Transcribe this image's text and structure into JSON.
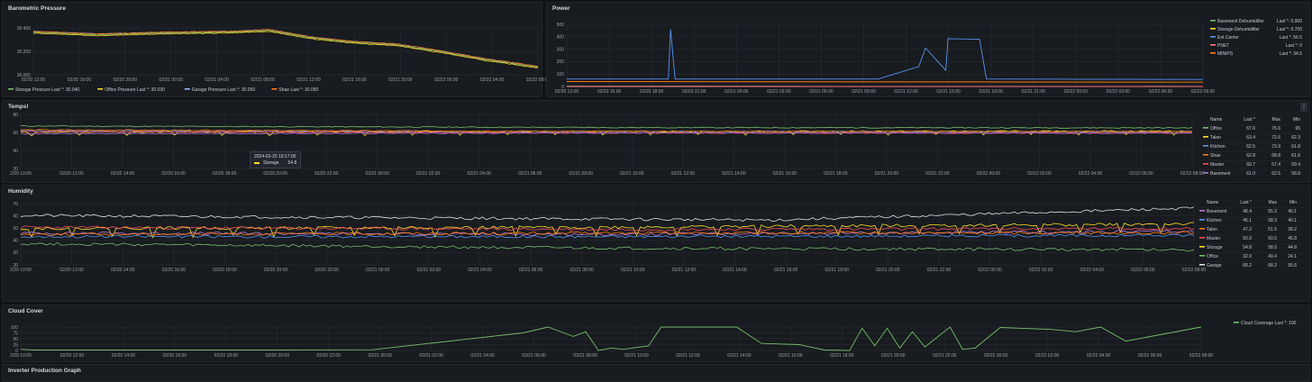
{
  "panels": {
    "baro": {
      "title": "Barometric Pressure"
    },
    "power": {
      "title": "Power"
    },
    "temps": {
      "title": "Temps!"
    },
    "humidity": {
      "title": "Humidity"
    },
    "cloud": {
      "title": "Cloud Cover"
    },
    "inverter": {
      "title": "Inverter Production Graph"
    }
  },
  "baro_legend": [
    {
      "label": "Storage Pressure  Last *: 30.040",
      "color": "#73bf69"
    },
    {
      "label": "Office Pressure  Last *: 30.030",
      "color": "#fade2a"
    },
    {
      "label": "Garage Pressure  Last *: 30.050",
      "color": "#8ab8ff"
    },
    {
      "label": "Shae  Last *: 30.050",
      "color": "#ff780a"
    }
  ],
  "power_legend": [
    {
      "name": "Basement Dehumidifier",
      "last": "Last *: 0.900",
      "color": "#73bf69"
    },
    {
      "name": "Storage Dehumidifier",
      "last": "Last *: 0.700",
      "color": "#fade2a"
    },
    {
      "name": "Ent Center",
      "last": "Last *: 56.5",
      "color": "#5794f2"
    },
    {
      "name": "PNET",
      "last": "Last *: 0",
      "color": "#ff7383"
    },
    {
      "name": "MINIPS",
      "last": "Last *: 34.5",
      "color": "#ff780a"
    }
  ],
  "temps_table": {
    "headers": [
      "Name",
      "Last *",
      "Max",
      "Min"
    ],
    "rows": [
      {
        "name": "Office",
        "last": "67.6",
        "max": "76.6",
        "min": "65",
        "color": "#73bf69"
      },
      {
        "name": "Talen",
        "last": "63.4",
        "max": "72.6",
        "min": "62.3",
        "color": "#fade2a"
      },
      {
        "name": "Kitchen",
        "last": "62.5",
        "max": "73.9",
        "min": "61.8",
        "color": "#5794f2"
      },
      {
        "name": "Shae",
        "last": "62.8",
        "max": "68.8",
        "min": "61.6",
        "color": "#ff780a"
      },
      {
        "name": "Master",
        "last": "60.7",
        "max": "67.4",
        "min": "59.4",
        "color": "#f2495c"
      },
      {
        "name": "Basement",
        "last": "61.0",
        "max": "62.5",
        "min": "58.8",
        "color": "#b877d9"
      }
    ]
  },
  "humidity_table": {
    "headers": [
      "Name",
      "Last *",
      "Max",
      "Min"
    ],
    "rows": [
      {
        "name": "Basement",
        "last": "48.4",
        "max": "55.3",
        "min": "40.1",
        "color": "#b877d9"
      },
      {
        "name": "Kitchen",
        "last": "45.1",
        "max": "58.3",
        "min": "40.1",
        "color": "#5794f2"
      },
      {
        "name": "Talen",
        "last": "47.2",
        "max": "51.5",
        "min": "38.2",
        "color": "#ff780a"
      },
      {
        "name": "Master",
        "last": "50.9",
        "max": "60.5",
        "min": "45.8",
        "color": "#f2495c"
      },
      {
        "name": "Storage",
        "last": "54.8",
        "max": "58.5",
        "min": "44.8",
        "color": "#fade2a"
      },
      {
        "name": "Office",
        "last": "32.9",
        "max": "40.4",
        "min": "24.1",
        "color": "#73bf69"
      },
      {
        "name": "Garage",
        "last": "68.2",
        "max": "68.2",
        "min": "55.6",
        "color": "#e0e0e0"
      }
    ]
  },
  "cloud_legend": {
    "label": "Cloud Coverage  Last *: 100",
    "color": "#73bf69"
  },
  "tooltip": {
    "time": "2024-02-20 19:17:00",
    "series": "Storage",
    "value": "54.8"
  },
  "axes": {
    "baro_y": [
      "30.400",
      "30.200",
      "30.000"
    ],
    "baro_x": [
      "02/20 12:00",
      "02/20 16:00",
      "02/20 20:00",
      "02/21 00:00",
      "02/21 04:00",
      "02/21 08:00",
      "02/21 12:00",
      "02/21 16:00",
      "02/21 20:00",
      "02/22 00:00",
      "02/22 04:00",
      "02/22 08:00"
    ],
    "power_y": [
      "500",
      "400",
      "300",
      "200",
      "100",
      "0"
    ],
    "power_x": [
      "02/20 12:00",
      "02/20 15:00",
      "02/20 18:00",
      "02/20 21:00",
      "02/21 00:00",
      "02/21 03:00",
      "02/21 06:00",
      "02/21 09:00",
      "02/21 12:00",
      "02/21 15:00",
      "02/21 18:00",
      "02/21 21:00",
      "02/22 00:00",
      "02/22 03:00",
      "02/22 06:00",
      "02/22 09:00"
    ],
    "temps_y": [
      "80",
      "60",
      "40",
      "20"
    ],
    "humidity_y": [
      "70",
      "60",
      "50",
      "40",
      "30",
      "20"
    ],
    "cloud_y": [
      "100",
      "75",
      "50",
      "25",
      "0"
    ],
    "long_x": [
      "2/20 10:00",
      "02/20 12:00",
      "02/20 14:00",
      "02/20 16:00",
      "02/20 18:00",
      "02/20 20:00",
      "02/20 22:00",
      "02/21 00:00",
      "02/21 02:00",
      "02/21 04:00",
      "02/21 06:00",
      "02/21 08:00",
      "02/21 10:00",
      "02/21 12:00",
      "02/21 14:00",
      "02/21 16:00",
      "02/21 18:00",
      "02/21 20:00",
      "02/21 22:00",
      "02/22 00:00",
      "02/22 02:00",
      "02/22 04:00",
      "02/22 06:00",
      "02/22 08:00"
    ]
  },
  "colors": {
    "background": "#111217",
    "panel": "#181b1f",
    "grid": "#2c2f35",
    "table_header": "#5794f2"
  },
  "chart_data": [
    {
      "type": "line",
      "title": "Barometric Pressure",
      "ylim": [
        29.95,
        30.5
      ],
      "series": [
        {
          "name": "Storage Pressure",
          "x": [
            "02/20 10:00",
            "02/20 16:00",
            "02/20 22:00",
            "02/21 04:00",
            "02/21 08:00",
            "02/21 12:00",
            "02/21 16:00",
            "02/21 20:00",
            "02/22 00:00",
            "02/22 04:00",
            "02/22 09:00"
          ],
          "values": [
            30.45,
            30.42,
            30.44,
            30.45,
            30.47,
            30.38,
            30.33,
            30.3,
            30.22,
            30.13,
            30.04
          ]
        },
        {
          "name": "Office Pressure",
          "x": [
            "02/20 10:00",
            "02/20 16:00",
            "02/20 22:00",
            "02/21 04:00",
            "02/21 08:00",
            "02/21 12:00",
            "02/21 16:00",
            "02/21 20:00",
            "02/22 00:00",
            "02/22 04:00",
            "02/22 09:00"
          ],
          "values": [
            30.44,
            30.41,
            30.43,
            30.44,
            30.46,
            30.37,
            30.32,
            30.29,
            30.21,
            30.12,
            30.03
          ]
        },
        {
          "name": "Garage Pressure",
          "x": [
            "02/20 10:00",
            "02/20 16:00",
            "02/20 22:00",
            "02/21 04:00",
            "02/21 08:00",
            "02/21 12:00",
            "02/21 16:00",
            "02/21 20:00",
            "02/22 00:00",
            "02/22 04:00",
            "02/22 09:00"
          ],
          "values": [
            30.46,
            30.43,
            30.45,
            30.46,
            30.48,
            30.39,
            30.34,
            30.31,
            30.23,
            30.14,
            30.05
          ]
        },
        {
          "name": "Shae",
          "x": [
            "02/20 10:00",
            "02/20 16:00",
            "02/20 22:00",
            "02/21 04:00",
            "02/21 08:00",
            "02/21 12:00",
            "02/21 16:00",
            "02/21 20:00",
            "02/22 00:00",
            "02/22 04:00",
            "02/22 09:00"
          ],
          "values": [
            30.46,
            30.43,
            30.45,
            30.46,
            30.48,
            30.39,
            30.34,
            30.31,
            30.23,
            30.14,
            30.05
          ]
        }
      ]
    },
    {
      "type": "line",
      "title": "Power",
      "ylim": [
        0,
        500
      ],
      "series": [
        {
          "name": "Ent Center",
          "x": [
            "02/20 10:00",
            "02/20 17:30",
            "02/20 17:40",
            "02/20 18:00",
            "02/21 09:00",
            "02/21 12:00",
            "02/21 12:30",
            "02/21 14:00",
            "02/21 14:10",
            "02/21 16:30",
            "02/21 17:00",
            "02/22 09:00"
          ],
          "values": [
            60,
            60,
            460,
            60,
            60,
            160,
            310,
            130,
            385,
            380,
            60,
            56.5
          ]
        },
        {
          "name": "MINIPS",
          "x": [
            "02/20 10:00",
            "02/22 09:00"
          ],
          "values": [
            40,
            34.5
          ]
        },
        {
          "name": "Basement Dehumidifier",
          "x": [
            "02/20 10:00",
            "02/22 09:00"
          ],
          "values": [
            2,
            0.9
          ]
        },
        {
          "name": "Storage Dehumidifier",
          "x": [
            "02/20 10:00",
            "02/22 09:00"
          ],
          "values": [
            1,
            0.7
          ]
        },
        {
          "name": "PNET",
          "x": [
            "02/20 10:00",
            "02/22 09:00"
          ],
          "values": [
            0,
            0
          ]
        }
      ]
    },
    {
      "type": "line",
      "title": "Temps!",
      "ylim": [
        15,
        85
      ],
      "series": [
        {
          "name": "Office",
          "x": [
            "02/20 10:00",
            "02/21 10:00",
            "02/22 09:00"
          ],
          "values": [
            70,
            68,
            67.6
          ]
        },
        {
          "name": "Talen",
          "x": [
            "02/20 10:00",
            "02/21 10:00",
            "02/22 09:00"
          ],
          "values": [
            62,
            63,
            63.4
          ]
        },
        {
          "name": "Kitchen",
          "x": [
            "02/20 10:00",
            "02/21 10:00",
            "02/22 09:00"
          ],
          "values": [
            64,
            63,
            62.5
          ]
        },
        {
          "name": "Shae",
          "x": [
            "02/20 10:00",
            "02/21 10:00",
            "02/22 09:00"
          ],
          "values": [
            65,
            63,
            62.8
          ]
        },
        {
          "name": "Master",
          "x": [
            "02/20 10:00",
            "02/21 10:00",
            "02/22 09:00"
          ],
          "values": [
            63,
            61,
            60.7
          ]
        },
        {
          "name": "Basement",
          "x": [
            "02/20 10:00",
            "02/21 10:00",
            "02/22 09:00"
          ],
          "values": [
            60,
            61,
            61.0
          ]
        }
      ]
    },
    {
      "type": "line",
      "title": "Humidity",
      "ylim": [
        20,
        72
      ],
      "series": [
        {
          "name": "Garage",
          "x": [
            "02/20 10:00",
            "02/21 16:00",
            "02/22 09:00"
          ],
          "values": [
            62,
            58,
            68.2
          ]
        },
        {
          "name": "Storage",
          "x": [
            "02/20 10:00",
            "02/21 10:00",
            "02/22 09:00"
          ],
          "values": [
            51,
            52,
            54.8
          ]
        },
        {
          "name": "Master",
          "x": [
            "02/20 10:00",
            "02/21 10:00",
            "02/22 09:00"
          ],
          "values": [
            52,
            50,
            50.9
          ]
        },
        {
          "name": "Basement",
          "x": [
            "02/20 10:00",
            "02/21 10:00",
            "02/22 09:00"
          ],
          "values": [
            47,
            46,
            48.4
          ]
        },
        {
          "name": "Talen",
          "x": [
            "02/20 10:00",
            "02/21 10:00",
            "02/22 09:00"
          ],
          "values": [
            46,
            47,
            47.2
          ]
        },
        {
          "name": "Kitchen",
          "x": [
            "02/20 10:00",
            "02/21 10:00",
            "02/22 09:00"
          ],
          "values": [
            44,
            44,
            45.1
          ]
        },
        {
          "name": "Office",
          "x": [
            "02/20 10:00",
            "02/21 10:00",
            "02/22 09:00"
          ],
          "values": [
            38,
            34,
            32.9
          ]
        }
      ]
    },
    {
      "type": "line",
      "title": "Cloud Cover",
      "ylim": [
        0,
        100
      ],
      "series": [
        {
          "name": "Cloud Coverage",
          "x": [
            "02/20 10:00",
            "02/20 10:30",
            "02/20 20:00",
            "02/21 00:00",
            "02/21 06:00",
            "02/21 07:00",
            "02/21 08:00",
            "02/21 08:30",
            "02/21 09:00",
            "02/21 09:30",
            "02/21 10:00",
            "02/21 11:00",
            "02/21 11:30",
            "02/21 14:30",
            "02/21 15:30",
            "02/21 17:00",
            "02/21 18:00",
            "02/21 19:00",
            "02/21 19:30",
            "02/21 20:00",
            "02/21 20:30",
            "02/21 21:00",
            "02/21 21:30",
            "02/21 22:00",
            "02/21 23:00",
            "02/21 23:30",
            "02/22 00:00",
            "02/22 01:00",
            "02/22 03:00",
            "02/22 04:00",
            "02/22 05:00",
            "02/22 06:00",
            "02/22 09:00"
          ],
          "values": [
            5,
            2,
            2,
            3,
            75,
            100,
            60,
            80,
            0,
            10,
            5,
            20,
            100,
            100,
            30,
            25,
            2,
            0,
            95,
            20,
            95,
            10,
            80,
            15,
            100,
            5,
            10,
            98,
            90,
            80,
            100,
            40,
            100
          ]
        }
      ]
    }
  ]
}
